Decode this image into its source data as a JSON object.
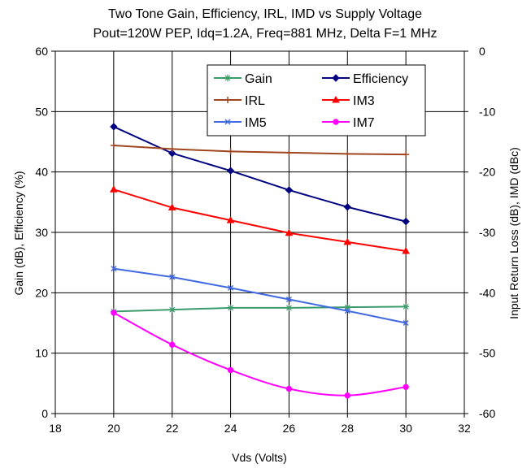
{
  "chart_data": {
    "type": "line",
    "title": "Two Tone Gain, Efficiency, IRL, IMD vs Supply Voltage",
    "subtitle": "Pout=120W PEP, Idq=1.2A, Freq=881 MHz, Delta F=1 MHz",
    "xlabel": "Vds (Volts)",
    "ylabel": "Gain (dB), Efficiency (%)",
    "y2label": "Input Return Loss (dB), IMD (dBc)",
    "xlim": [
      18,
      32
    ],
    "ylim": [
      0,
      60
    ],
    "y2lim": [
      -60,
      0
    ],
    "xticks": [
      "18",
      "20",
      "22",
      "24",
      "26",
      "28",
      "30",
      "32"
    ],
    "yticks": [
      "0",
      "10",
      "20",
      "30",
      "40",
      "50",
      "60"
    ],
    "y2ticks": [
      "-60",
      "-50",
      "-40",
      "-30",
      "-20",
      "-10",
      "0"
    ],
    "grid": "vertical-x-and-horizontal-y",
    "legend_position": "top-right",
    "x": [
      20,
      22,
      24,
      26,
      28,
      30
    ],
    "series": [
      {
        "name": "Gain",
        "axis": "left",
        "color": "#3a9b6b",
        "marker": "asterisk",
        "values": [
          16.9,
          17.2,
          17.5,
          17.5,
          17.6,
          17.7
        ]
      },
      {
        "name": "Efficiency",
        "axis": "left",
        "color": "#000080",
        "marker": "diamond",
        "values": [
          47.5,
          43.1,
          40.2,
          37.0,
          34.2,
          31.8
        ]
      },
      {
        "name": "IRL",
        "axis": "right",
        "color": "#a0461e",
        "marker": "plus",
        "values": [
          -15.6,
          -16.2,
          -16.6,
          -16.8,
          -17.0,
          -17.1
        ]
      },
      {
        "name": "IM3",
        "axis": "right",
        "color": "#ff0000",
        "marker": "triangle",
        "values": [
          -22.9,
          -25.9,
          -28.0,
          -30.1,
          -31.6,
          -33.1
        ]
      },
      {
        "name": "IM5",
        "axis": "right",
        "color": "#4169e1",
        "marker": "x",
        "values": [
          -36.0,
          -37.4,
          -39.2,
          -41.1,
          -43.0,
          -45.0
        ]
      },
      {
        "name": "IM7",
        "axis": "right",
        "color": "#ff00ff",
        "marker": "circle",
        "values": [
          -43.3,
          -48.6,
          -52.8,
          -55.9,
          -57.0,
          -55.6
        ]
      }
    ]
  }
}
